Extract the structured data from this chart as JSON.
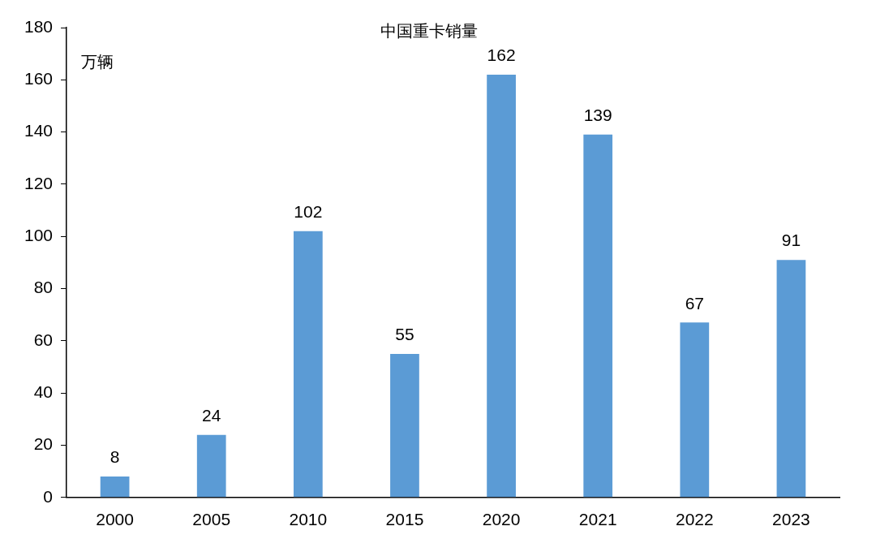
{
  "chart_data": {
    "type": "bar",
    "title": "中国重卡销量",
    "ylabel": "万辆",
    "categories": [
      "2000",
      "2005",
      "2010",
      "2015",
      "2020",
      "2021",
      "2022",
      "2023"
    ],
    "values": [
      8,
      24,
      102,
      55,
      162,
      139,
      67,
      91
    ],
    "color": "#5b9bd5",
    "ylim": [
      0,
      180
    ],
    "yticks": [
      0,
      20,
      40,
      60,
      80,
      100,
      120,
      140,
      160,
      180
    ],
    "data_labels": true,
    "grid": false,
    "legend": false
  }
}
